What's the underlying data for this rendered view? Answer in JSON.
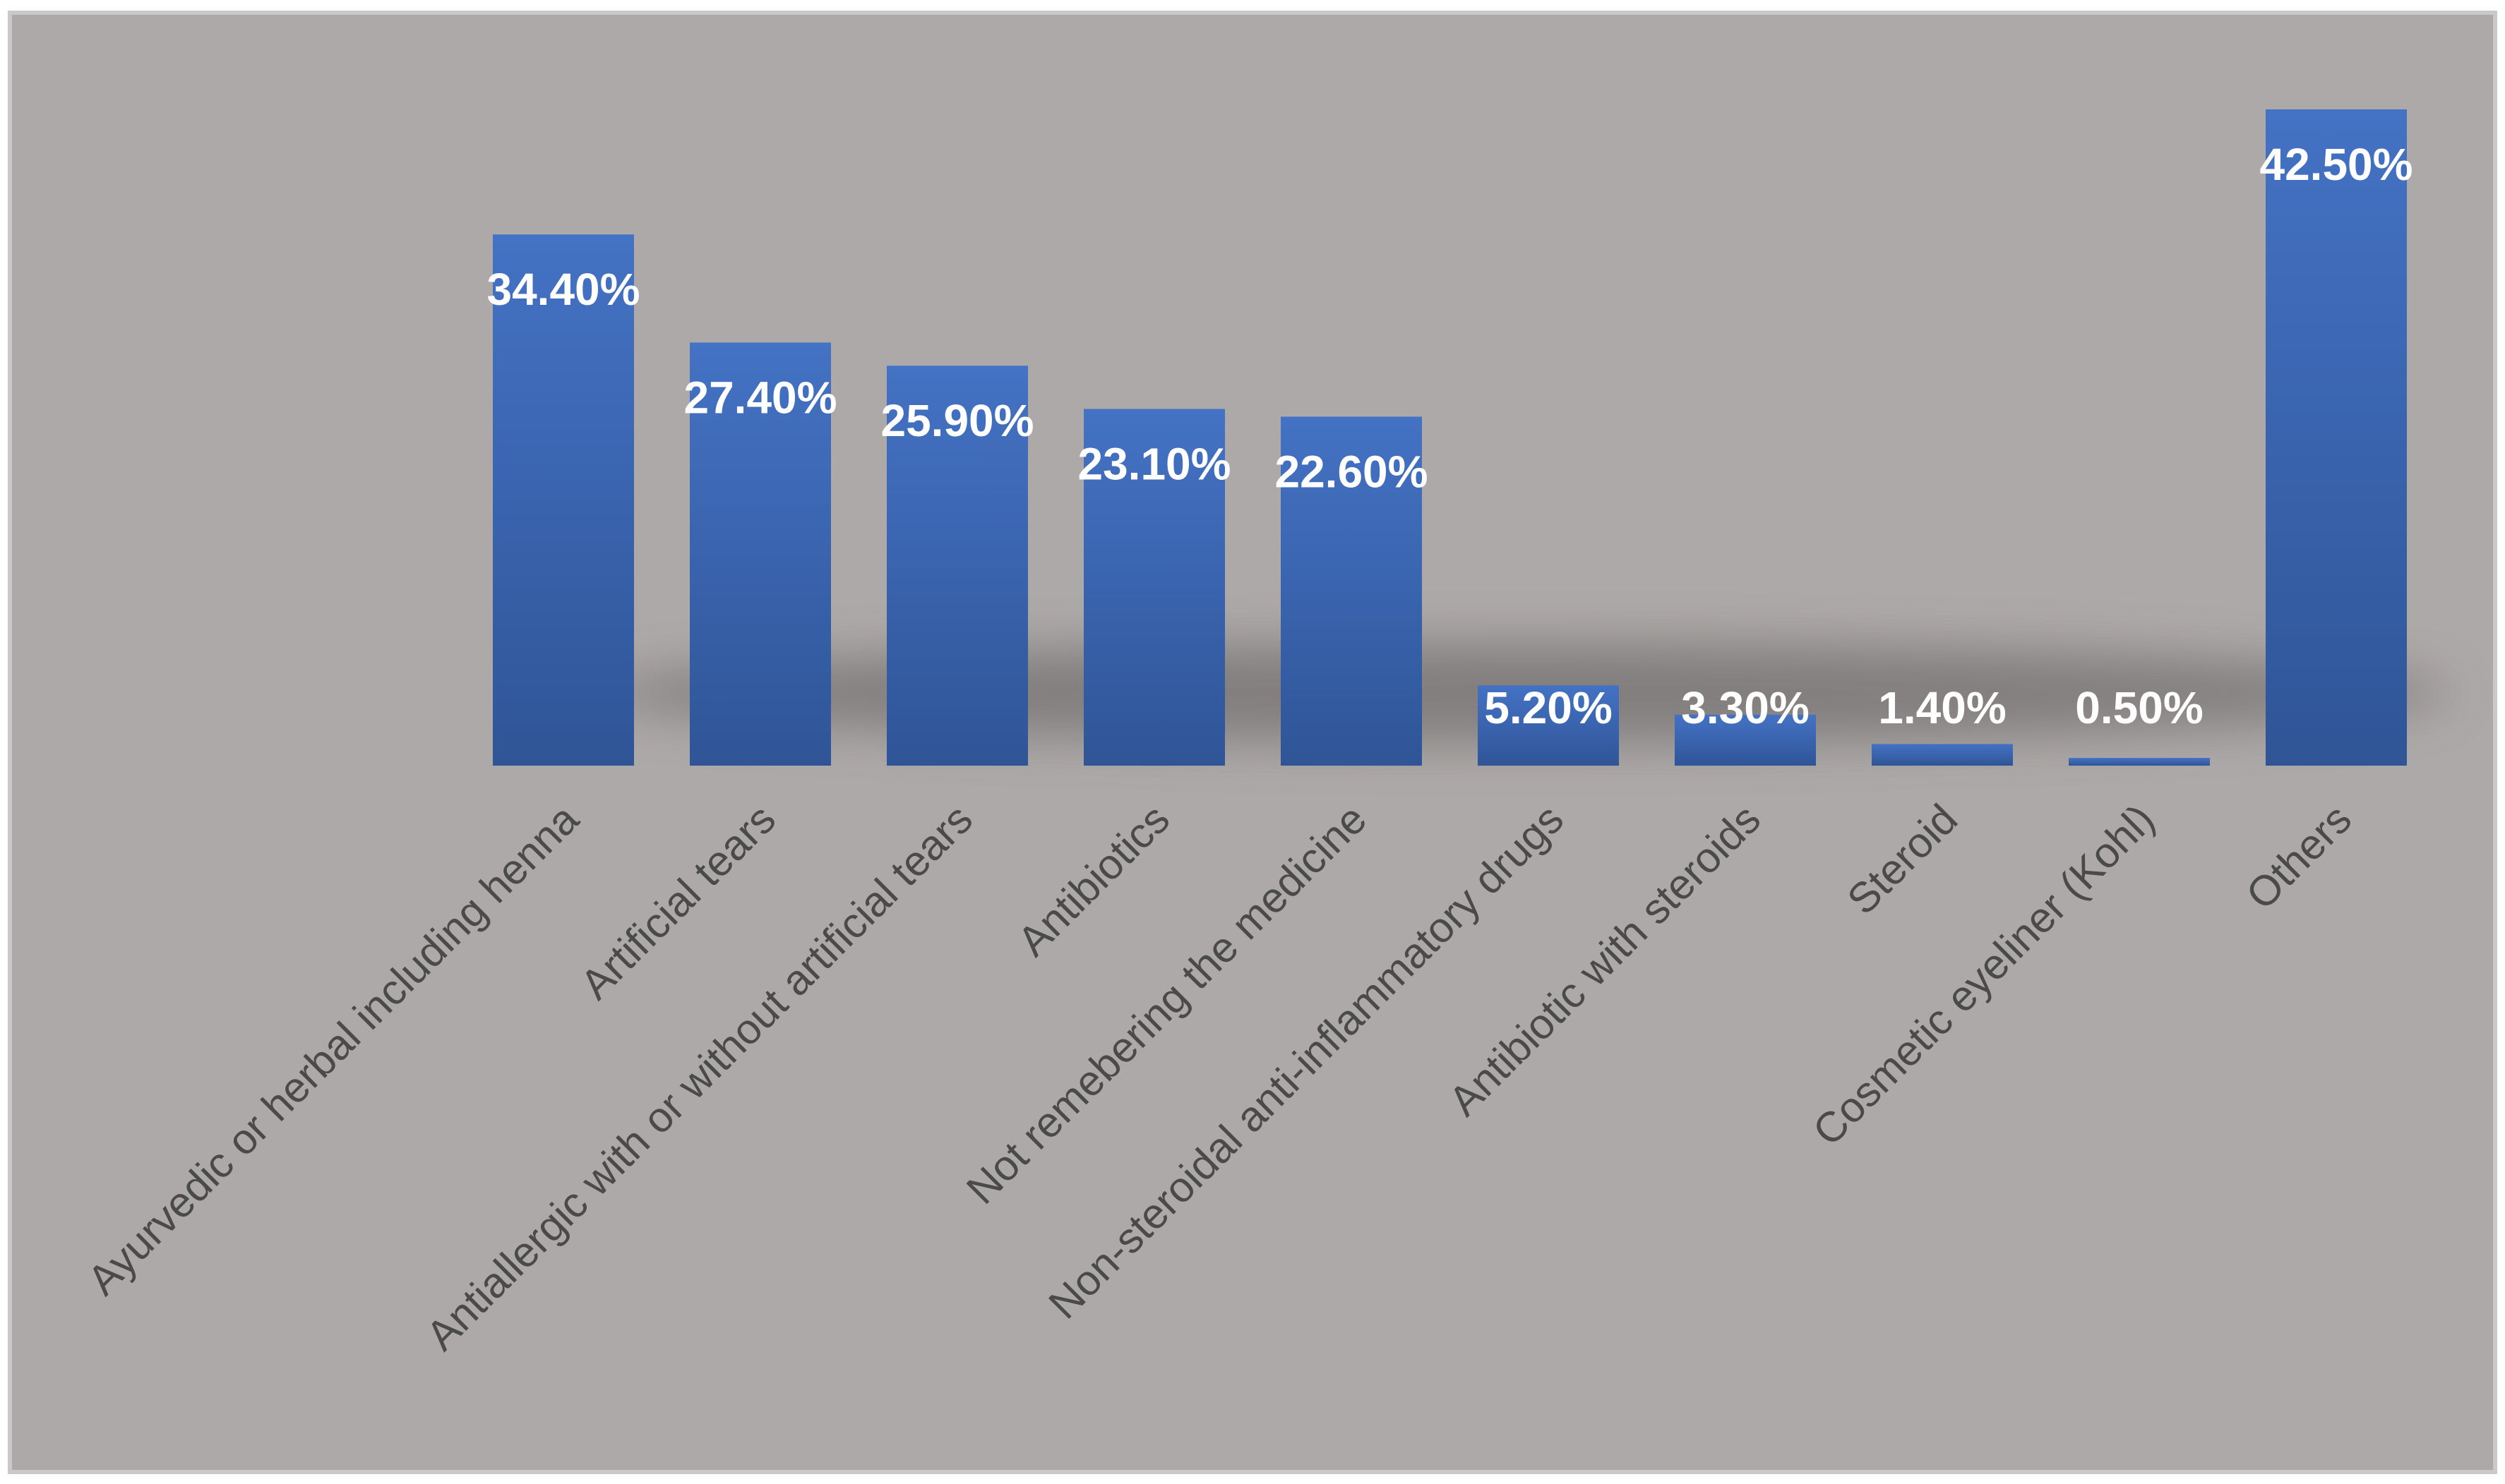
{
  "chart_data": {
    "type": "bar",
    "title": "",
    "xlabel": "",
    "ylabel": "",
    "ylim": [
      0,
      42.5
    ],
    "grid": false,
    "legend": "none",
    "categories": [
      "Ayurvedic or herbal including henna",
      "Artificial tears",
      "Antiallergic with or without artificial tears",
      "Antibiotics",
      "Not remebering the medicine",
      "Non-steroidal anti-inflammatory drugs",
      "Antibiotic with steroids",
      "Steroid",
      "Cosmetic eyeliner (Kohl)",
      "Others"
    ],
    "values": [
      34.4,
      27.4,
      25.9,
      23.1,
      22.6,
      5.2,
      3.3,
      1.4,
      0.5,
      42.5
    ],
    "data_labels": [
      "34.40%",
      "27.40%",
      "25.90%",
      "23.10%",
      "22.60%",
      "5.20%",
      "3.30%",
      "1.40%",
      "0.50%",
      "42.50%"
    ],
    "colors": {
      "background": "#ada9a8",
      "frame": "#c9c9c9",
      "bar_top": "#4472c4",
      "bar_bottom": "#2f5597",
      "label_text": "#4a4a4a",
      "value_text": "#ffffff"
    }
  }
}
